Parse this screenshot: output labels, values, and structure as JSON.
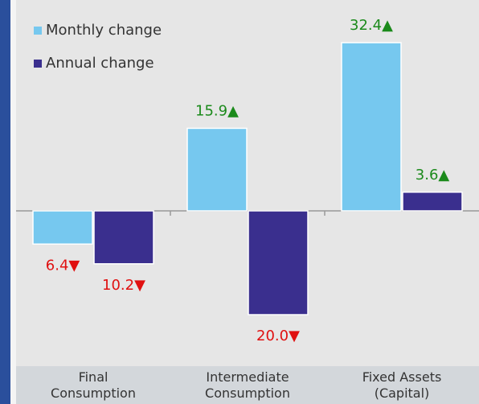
{
  "chart_data": {
    "type": "bar",
    "categories": [
      "Final Consumption",
      "Intermediate Consumption",
      "Fixed Assets (Capital)"
    ],
    "series": [
      {
        "name": "Monthly change",
        "color": "#76c8ef",
        "values": [
          -6.4,
          15.9,
          32.4
        ],
        "value_labels": [
          "6.4▼",
          "15.9▲",
          "32.4▲"
        ]
      },
      {
        "name": "Annual change",
        "color": "#3a2f8e",
        "values": [
          -10.2,
          -20.0,
          3.6
        ],
        "value_labels": [
          "10.2▼",
          "20.0▼",
          "3.6▲"
        ]
      }
    ],
    "legend": "top-left"
  }
}
